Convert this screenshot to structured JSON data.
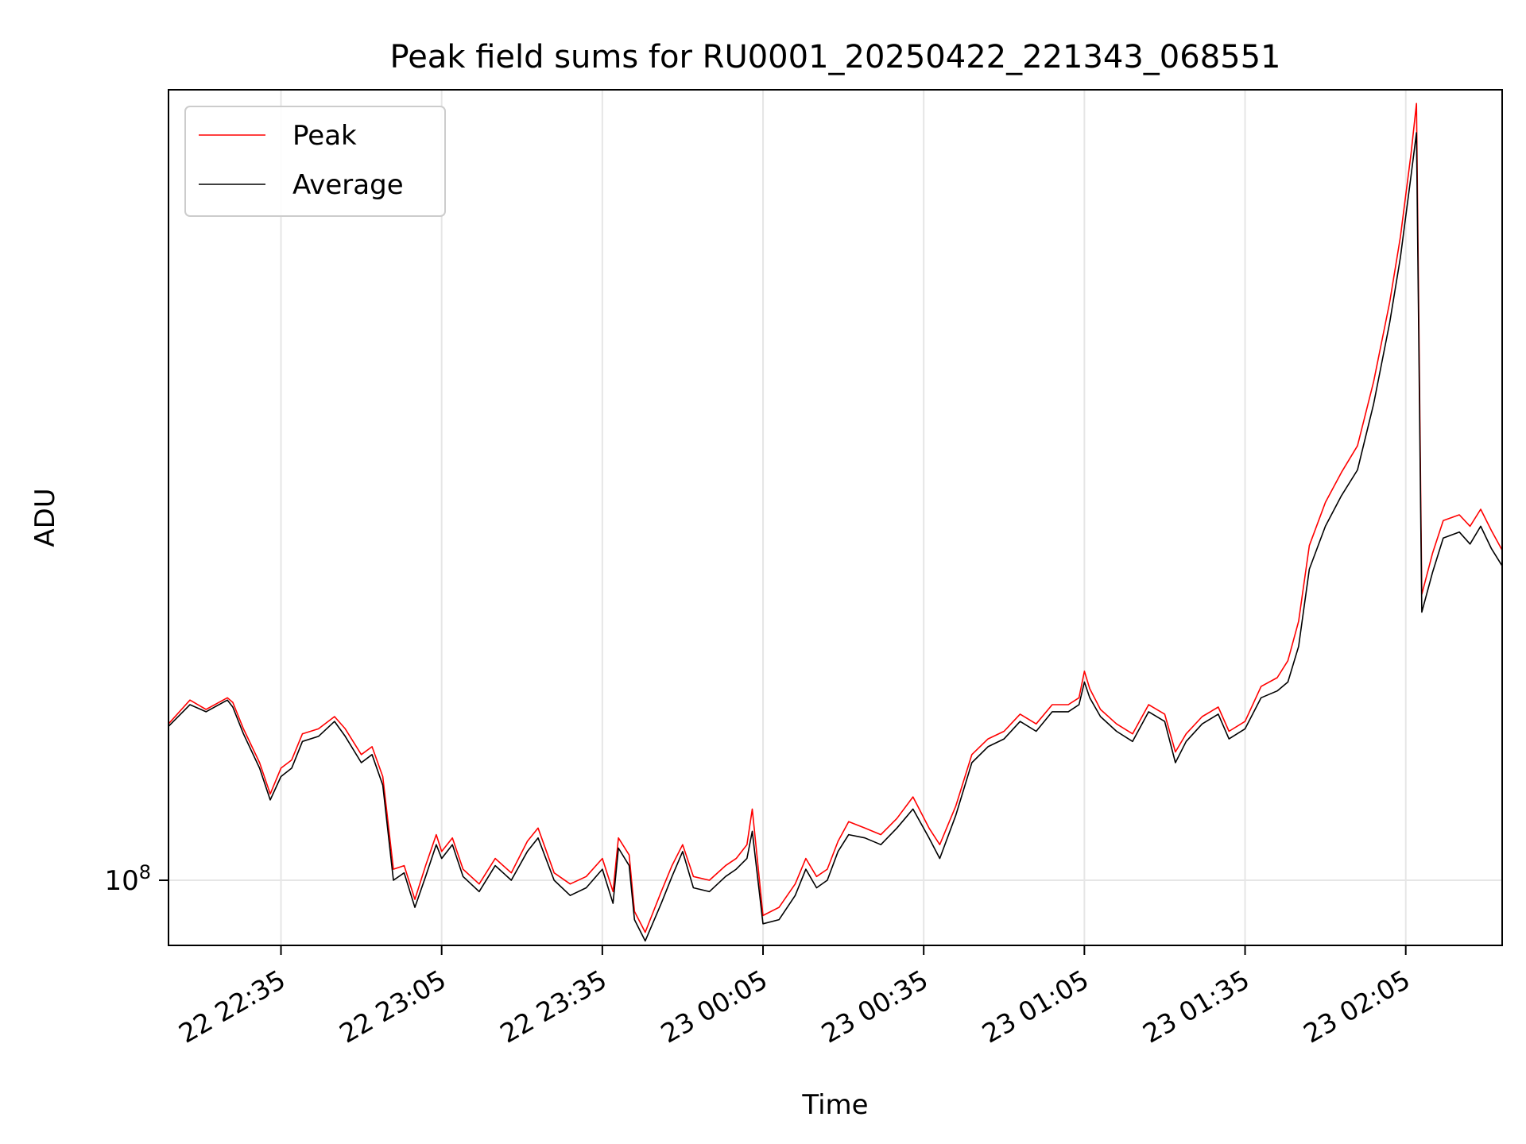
{
  "chart_data": {
    "type": "line",
    "title": "Peak field sums for RU0001_20250422_221343_068551",
    "xlabel": "Time",
    "ylabel": "ADU",
    "yscale": "log",
    "ytick": {
      "value": 100000000,
      "base": "10",
      "exponent": "8"
    },
    "xticks": [
      "22 22:35",
      "22 23:05",
      "22 23:35",
      "23 00:05",
      "23 00:35",
      "23 01:05",
      "23 01:35",
      "23 02:05"
    ],
    "xlim": [
      "22 22:14",
      "23 02:23"
    ],
    "ylim": [
      84000000,
      830000000
    ],
    "grid": true,
    "legend_position": "top-left",
    "series": [
      {
        "name": "Peak",
        "color": "#ff0000",
        "points": [
          [
            "22 22:14",
            152000000
          ],
          [
            "22 22:18",
            162000000
          ],
          [
            "22 22:21",
            158000000
          ],
          [
            "22 22:25",
            163000000
          ],
          [
            "22 22:26",
            161000000
          ],
          [
            "22 22:28",
            150000000
          ],
          [
            "22 22:31",
            137000000
          ],
          [
            "22 22:33",
            126000000
          ],
          [
            "22 22:35",
            135000000
          ],
          [
            "22 22:37",
            138000000
          ],
          [
            "22 22:39",
            148000000
          ],
          [
            "22 22:42",
            150000000
          ],
          [
            "22 22:45",
            155000000
          ],
          [
            "22 22:47",
            150000000
          ],
          [
            "22 22:50",
            140000000
          ],
          [
            "22 22:52",
            143000000
          ],
          [
            "22 22:54",
            132000000
          ],
          [
            "22 22:56",
            103000000
          ],
          [
            "22 22:58",
            104000000
          ],
          [
            "22 23:00",
            95000000
          ],
          [
            "22 23:02",
            104000000
          ],
          [
            "22 23:04",
            113000000
          ],
          [
            "22 23:05",
            108000000
          ],
          [
            "22 23:07",
            112000000
          ],
          [
            "22 23:09",
            103000000
          ],
          [
            "22 23:12",
            99000000
          ],
          [
            "22 23:15",
            106000000
          ],
          [
            "22 23:18",
            102000000
          ],
          [
            "22 23:21",
            111000000
          ],
          [
            "22 23:23",
            115000000
          ],
          [
            "22 23:26",
            102000000
          ],
          [
            "22 23:29",
            99000000
          ],
          [
            "22 23:32",
            101000000
          ],
          [
            "22 23:35",
            106000000
          ],
          [
            "22 23:37",
            97000000
          ],
          [
            "22 23:38",
            112000000
          ],
          [
            "22 23:40",
            107000000
          ],
          [
            "22 23:41",
            92000000
          ],
          [
            "22 23:43",
            87000000
          ],
          [
            "22 23:46",
            97000000
          ],
          [
            "22 23:48",
            104000000
          ],
          [
            "22 23:50",
            110000000
          ],
          [
            "22 23:52",
            101000000
          ],
          [
            "22 23:55",
            100000000
          ],
          [
            "22 23:58",
            104000000
          ],
          [
            "23 00:00",
            106000000
          ],
          [
            "23 00:02",
            110000000
          ],
          [
            "23 00:03",
            121000000
          ],
          [
            "23 00:05",
            91000000
          ],
          [
            "23 00:08",
            93000000
          ],
          [
            "23 00:11",
            99000000
          ],
          [
            "23 00:13",
            106000000
          ],
          [
            "23 00:15",
            101000000
          ],
          [
            "23 00:17",
            103000000
          ],
          [
            "23 00:19",
            111000000
          ],
          [
            "23 00:21",
            117000000
          ],
          [
            "23 00:24",
            115000000
          ],
          [
            "23 00:27",
            113000000
          ],
          [
            "23 00:30",
            118000000
          ],
          [
            "23 00:33",
            125000000
          ],
          [
            "23 00:36",
            115000000
          ],
          [
            "23 00:38",
            110000000
          ],
          [
            "23 00:41",
            122000000
          ],
          [
            "23 00:44",
            140000000
          ],
          [
            "23 00:47",
            146000000
          ],
          [
            "23 00:50",
            149000000
          ],
          [
            "23 00:53",
            156000000
          ],
          [
            "23 00:56",
            152000000
          ],
          [
            "23 00:59",
            160000000
          ],
          [
            "23 01:02",
            160000000
          ],
          [
            "23 01:04",
            163000000
          ],
          [
            "23 01:05",
            175000000
          ],
          [
            "23 01:06",
            167000000
          ],
          [
            "23 01:08",
            158000000
          ],
          [
            "23 01:11",
            152000000
          ],
          [
            "23 01:14",
            148000000
          ],
          [
            "23 01:17",
            160000000
          ],
          [
            "23 01:20",
            156000000
          ],
          [
            "23 01:22",
            141000000
          ],
          [
            "23 01:24",
            148000000
          ],
          [
            "23 01:27",
            155000000
          ],
          [
            "23 01:30",
            159000000
          ],
          [
            "23 01:32",
            149000000
          ],
          [
            "23 01:35",
            153000000
          ],
          [
            "23 01:38",
            168000000
          ],
          [
            "23 01:41",
            172000000
          ],
          [
            "23 01:43",
            180000000
          ],
          [
            "23 01:45",
            200000000
          ],
          [
            "23 01:47",
            245000000
          ],
          [
            "23 01:50",
            275000000
          ],
          [
            "23 01:53",
            298000000
          ],
          [
            "23 01:56",
            320000000
          ],
          [
            "23 01:59",
            380000000
          ],
          [
            "23 02:02",
            470000000
          ],
          [
            "23 02:04",
            560000000
          ],
          [
            "23 02:06",
            700000000
          ],
          [
            "23 02:07",
            800000000
          ],
          [
            "23 02:08",
            215000000
          ],
          [
            "23 02:10",
            240000000
          ],
          [
            "23 02:12",
            262000000
          ],
          [
            "23 02:15",
            266000000
          ],
          [
            "23 02:17",
            258000000
          ],
          [
            "23 02:19",
            270000000
          ],
          [
            "23 02:21",
            255000000
          ],
          [
            "23 02:23",
            242000000
          ]
        ]
      },
      {
        "name": "Average",
        "color": "#000000",
        "points": [
          [
            "22 22:14",
            151000000
          ],
          [
            "22 22:18",
            160000000
          ],
          [
            "22 22:21",
            157000000
          ],
          [
            "22 22:25",
            162000000
          ],
          [
            "22 22:26",
            159000000
          ],
          [
            "22 22:28",
            148000000
          ],
          [
            "22 22:31",
            135000000
          ],
          [
            "22 22:33",
            124000000
          ],
          [
            "22 22:35",
            132000000
          ],
          [
            "22 22:37",
            135000000
          ],
          [
            "22 22:39",
            145000000
          ],
          [
            "22 22:42",
            147000000
          ],
          [
            "22 22:45",
            153000000
          ],
          [
            "22 22:47",
            147000000
          ],
          [
            "22 22:50",
            137000000
          ],
          [
            "22 22:52",
            140000000
          ],
          [
            "22 22:54",
            129000000
          ],
          [
            "22 22:56",
            100000000
          ],
          [
            "22 22:58",
            102000000
          ],
          [
            "22 23:00",
            93000000
          ],
          [
            "22 23:02",
            101000000
          ],
          [
            "22 23:04",
            110000000
          ],
          [
            "22 23:05",
            106000000
          ],
          [
            "22 23:07",
            110000000
          ],
          [
            "22 23:09",
            101000000
          ],
          [
            "22 23:12",
            97000000
          ],
          [
            "22 23:15",
            104000000
          ],
          [
            "22 23:18",
            100000000
          ],
          [
            "22 23:21",
            108000000
          ],
          [
            "22 23:23",
            112000000
          ],
          [
            "22 23:26",
            100000000
          ],
          [
            "22 23:29",
            96000000
          ],
          [
            "22 23:32",
            98000000
          ],
          [
            "22 23:35",
            103000000
          ],
          [
            "22 23:37",
            94000000
          ],
          [
            "22 23:38",
            109000000
          ],
          [
            "22 23:40",
            104000000
          ],
          [
            "22 23:41",
            90000000
          ],
          [
            "22 23:43",
            85000000
          ],
          [
            "22 23:46",
            94000000
          ],
          [
            "22 23:48",
            101000000
          ],
          [
            "22 23:50",
            108000000
          ],
          [
            "22 23:52",
            98000000
          ],
          [
            "22 23:55",
            97000000
          ],
          [
            "22 23:58",
            101000000
          ],
          [
            "23 00:00",
            103000000
          ],
          [
            "23 00:02",
            106000000
          ],
          [
            "23 00:03",
            114000000
          ],
          [
            "23 00:05",
            89000000
          ],
          [
            "23 00:08",
            90000000
          ],
          [
            "23 00:11",
            96000000
          ],
          [
            "23 00:13",
            103000000
          ],
          [
            "23 00:15",
            98000000
          ],
          [
            "23 00:17",
            100000000
          ],
          [
            "23 00:19",
            108000000
          ],
          [
            "23 00:21",
            113000000
          ],
          [
            "23 00:24",
            112000000
          ],
          [
            "23 00:27",
            110000000
          ],
          [
            "23 00:30",
            115000000
          ],
          [
            "23 00:33",
            121000000
          ],
          [
            "23 00:36",
            112000000
          ],
          [
            "23 00:38",
            106000000
          ],
          [
            "23 00:41",
            119000000
          ],
          [
            "23 00:44",
            137000000
          ],
          [
            "23 00:47",
            143000000
          ],
          [
            "23 00:50",
            146000000
          ],
          [
            "23 00:53",
            153000000
          ],
          [
            "23 00:56",
            149000000
          ],
          [
            "23 00:59",
            157000000
          ],
          [
            "23 01:02",
            157000000
          ],
          [
            "23 01:04",
            160000000
          ],
          [
            "23 01:05",
            170000000
          ],
          [
            "23 01:06",
            163000000
          ],
          [
            "23 01:08",
            155000000
          ],
          [
            "23 01:11",
            149000000
          ],
          [
            "23 01:14",
            145000000
          ],
          [
            "23 01:17",
            157000000
          ],
          [
            "23 01:20",
            153000000
          ],
          [
            "23 01:22",
            137000000
          ],
          [
            "23 01:24",
            145000000
          ],
          [
            "23 01:27",
            152000000
          ],
          [
            "23 01:30",
            156000000
          ],
          [
            "23 01:32",
            146000000
          ],
          [
            "23 01:35",
            150000000
          ],
          [
            "23 01:38",
            163000000
          ],
          [
            "23 01:41",
            166000000
          ],
          [
            "23 01:43",
            170000000
          ],
          [
            "23 01:45",
            187000000
          ],
          [
            "23 01:47",
            230000000
          ],
          [
            "23 01:50",
            258000000
          ],
          [
            "23 01:53",
            280000000
          ],
          [
            "23 01:56",
            300000000
          ],
          [
            "23 01:59",
            358000000
          ],
          [
            "23 02:02",
            445000000
          ],
          [
            "23 02:04",
            530000000
          ],
          [
            "23 02:06",
            660000000
          ],
          [
            "23 02:07",
            740000000
          ],
          [
            "23 02:08",
            205000000
          ],
          [
            "23 02:10",
            228000000
          ],
          [
            "23 02:12",
            250000000
          ],
          [
            "23 02:15",
            254000000
          ],
          [
            "23 02:17",
            246000000
          ],
          [
            "23 02:19",
            258000000
          ],
          [
            "23 02:21",
            243000000
          ],
          [
            "23 02:23",
            232000000
          ]
        ]
      }
    ]
  }
}
